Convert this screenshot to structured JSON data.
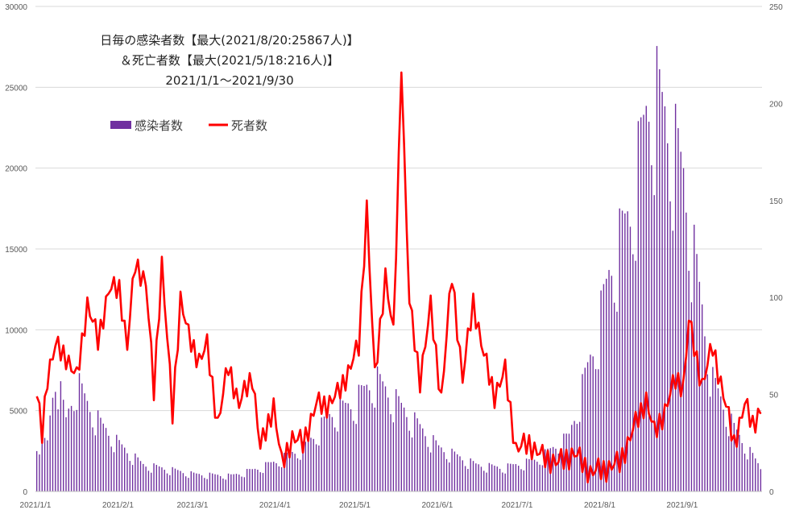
{
  "chart_data": {
    "type": "bar+line",
    "title_lines": [
      "日毎の感染者数【最大(2021/8/20:25867人)】",
      "＆死亡者数【最大(2021/5/18:216人)】",
      "2021/1/1～2021/9/30"
    ],
    "x_range": [
      "2021-01-01",
      "2021-09-30"
    ],
    "x_tick_labels": [
      "2021/1/1",
      "2021/2/1",
      "2021/3/1",
      "2021/4/1",
      "2021/5/1",
      "2021/6/1",
      "2021/7/1",
      "2021/8/1",
      "2021/9/1"
    ],
    "y_left": {
      "min": 0,
      "max": 30000,
      "step": 5000,
      "ticks": [
        "0",
        "5000",
        "10000",
        "15000",
        "20000",
        "25000",
        "30000"
      ]
    },
    "y_right": {
      "min": 0,
      "max": 250,
      "step": 50,
      "ticks": [
        "0",
        "50",
        "100",
        "150",
        "200",
        "250"
      ]
    },
    "grid": true,
    "legend_position": "top-left",
    "series": [
      {
        "name": "感染者数",
        "kind": "bar",
        "axis": "left",
        "color": "#7030a0",
        "keyframes": [
          [
            "2021-01-01",
            3200
          ],
          [
            "2021-01-05",
            3100
          ],
          [
            "2021-01-08",
            7900
          ],
          [
            "2021-01-12",
            4500
          ],
          [
            "2021-01-16",
            7000
          ],
          [
            "2021-01-20",
            5600
          ],
          [
            "2021-01-25",
            4300
          ],
          [
            "2021-02-01",
            3000
          ],
          [
            "2021-02-10",
            1700
          ],
          [
            "2021-02-20",
            1400
          ],
          [
            "2021-03-01",
            1100
          ],
          [
            "2021-03-15",
            1000
          ],
          [
            "2021-03-24",
            1400
          ],
          [
            "2021-04-01",
            1900
          ],
          [
            "2021-04-12",
            2900
          ],
          [
            "2021-04-22",
            5000
          ],
          [
            "2021-04-30",
            5600
          ],
          [
            "2021-05-08",
            7200
          ],
          [
            "2021-05-12",
            6500
          ],
          [
            "2021-05-20",
            5000
          ],
          [
            "2021-06-01",
            2800
          ],
          [
            "2021-06-15",
            1700
          ],
          [
            "2021-06-25",
            1500
          ],
          [
            "2021-07-08",
            2000
          ],
          [
            "2021-07-20",
            3500
          ],
          [
            "2021-07-30",
            9700
          ],
          [
            "2021-08-05",
            14500
          ],
          [
            "2021-08-12",
            17800
          ],
          [
            "2021-08-20",
            25867
          ],
          [
            "2021-08-27",
            23000
          ],
          [
            "2021-09-01",
            20000
          ],
          [
            "2021-09-05",
            15000
          ],
          [
            "2021-09-12",
            7000
          ],
          [
            "2021-09-20",
            4000
          ],
          [
            "2021-09-30",
            1500
          ]
        ]
      },
      {
        "name": "死者数",
        "kind": "line",
        "axis": "right",
        "color": "#ff0000",
        "keyframes": [
          [
            "2021-01-01",
            49
          ],
          [
            "2021-01-03",
            30
          ],
          [
            "2021-01-05",
            60
          ],
          [
            "2021-01-08",
            75
          ],
          [
            "2021-01-12",
            70
          ],
          [
            "2021-01-16",
            58
          ],
          [
            "2021-01-20",
            97
          ],
          [
            "2021-01-24",
            78
          ],
          [
            "2021-01-28",
            104
          ],
          [
            "2021-02-01",
            105
          ],
          [
            "2021-02-04",
            75
          ],
          [
            "2021-02-07",
            118
          ],
          [
            "2021-02-11",
            108
          ],
          [
            "2021-02-14",
            52
          ],
          [
            "2021-02-17",
            118
          ],
          [
            "2021-02-21",
            40
          ],
          [
            "2021-02-24",
            100
          ],
          [
            "2021-02-27",
            80
          ],
          [
            "2021-03-03",
            68
          ],
          [
            "2021-03-06",
            75
          ],
          [
            "2021-03-10",
            35
          ],
          [
            "2021-03-14",
            65
          ],
          [
            "2021-03-18",
            45
          ],
          [
            "2021-03-23",
            60
          ],
          [
            "2021-03-26",
            22
          ],
          [
            "2021-03-31",
            45
          ],
          [
            "2021-04-03",
            14
          ],
          [
            "2021-04-07",
            28
          ],
          [
            "2021-04-11",
            25
          ],
          [
            "2021-04-16",
            45
          ],
          [
            "2021-04-20",
            45
          ],
          [
            "2021-04-24",
            50
          ],
          [
            "2021-04-28",
            62
          ],
          [
            "2021-05-02",
            75
          ],
          [
            "2021-05-05",
            147
          ],
          [
            "2021-05-08",
            58
          ],
          [
            "2021-05-12",
            112
          ],
          [
            "2021-05-15",
            80
          ],
          [
            "2021-05-18",
            216
          ],
          [
            "2021-05-21",
            97
          ],
          [
            "2021-05-25",
            58
          ],
          [
            "2021-05-29",
            95
          ],
          [
            "2021-06-02",
            48
          ],
          [
            "2021-06-06",
            112
          ],
          [
            "2021-06-10",
            58
          ],
          [
            "2021-06-14",
            98
          ],
          [
            "2021-06-18",
            70
          ],
          [
            "2021-06-22",
            50
          ],
          [
            "2021-06-26",
            62
          ],
          [
            "2021-06-30",
            22
          ],
          [
            "2021-07-05",
            25
          ],
          [
            "2021-07-10",
            18
          ],
          [
            "2021-07-16",
            15
          ],
          [
            "2021-07-22",
            20
          ],
          [
            "2021-07-28",
            10
          ],
          [
            "2021-08-03",
            12
          ],
          [
            "2021-08-08",
            15
          ],
          [
            "2021-08-14",
            35
          ],
          [
            "2021-08-18",
            48
          ],
          [
            "2021-08-21",
            30
          ],
          [
            "2021-08-25",
            42
          ],
          [
            "2021-08-29",
            58
          ],
          [
            "2021-09-01",
            55
          ],
          [
            "2021-09-03",
            88
          ],
          [
            "2021-09-08",
            55
          ],
          [
            "2021-09-12",
            75
          ],
          [
            "2021-09-16",
            50
          ],
          [
            "2021-09-20",
            25
          ],
          [
            "2021-09-24",
            45
          ],
          [
            "2021-09-27",
            35
          ],
          [
            "2021-09-30",
            42
          ]
        ]
      }
    ]
  }
}
